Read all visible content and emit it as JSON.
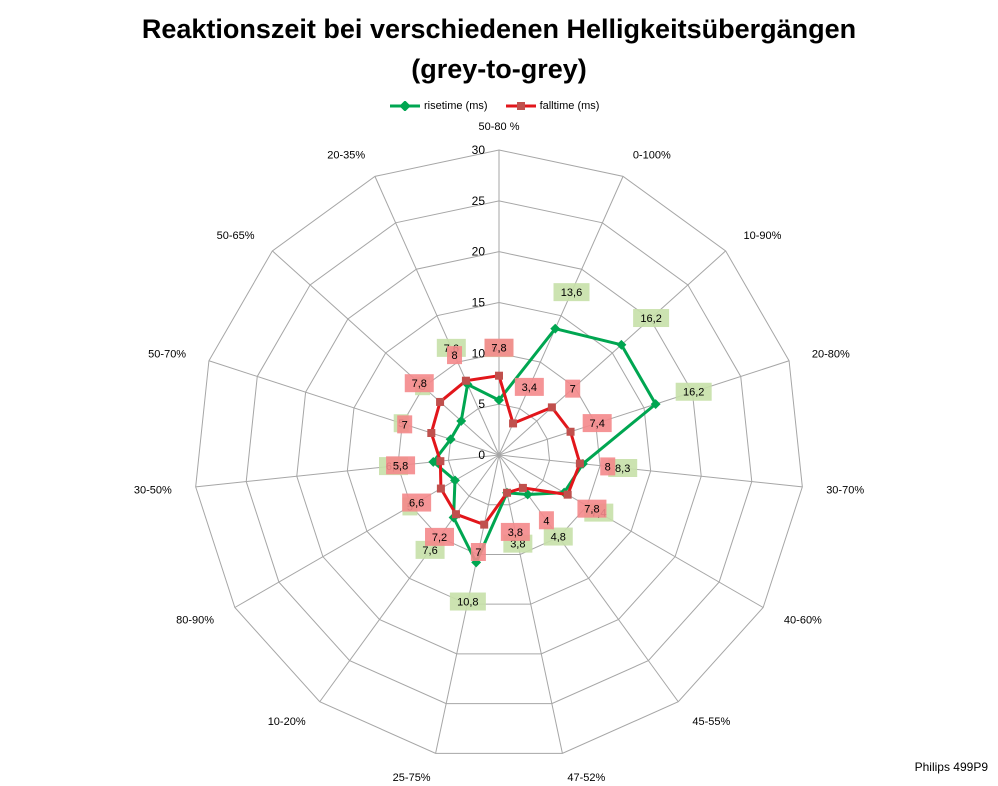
{
  "chart_data": {
    "type": "radar",
    "title_line1": "Reaktionszeit bei verschiedenen Helligkeitsübergängen",
    "title_line2": "(grey-to-grey)",
    "categories": [
      "50-80 %",
      "0-100%",
      "10-90%",
      "20-80%",
      "30-70%",
      "40-60%",
      "45-55%",
      "47-52%",
      "25-75%",
      "10-20%",
      "80-90%",
      "30-50%",
      "50-70%",
      "50-65%",
      "20-35%"
    ],
    "radial_ticks": [
      0,
      5,
      10,
      15,
      20,
      25,
      30
    ],
    "rlim": [
      0,
      30
    ],
    "series": [
      {
        "name": "risetime (ms)",
        "color": "#00a651",
        "label_bg": "#c6e0a8",
        "values": [
          5.4,
          13.6,
          16.2,
          16.2,
          8.3,
          7.4,
          4.8,
          3.8,
          10.8,
          7.6,
          5,
          6.5,
          5,
          5,
          7.6
        ],
        "labels": [
          "5,4",
          "13,6",
          "16,2",
          "16,2",
          "8,3",
          "7,4",
          "4,8",
          "3,8",
          "10,8",
          "7,6",
          "5",
          "6,5",
          "5",
          "5",
          "7,6"
        ]
      },
      {
        "name": "falltime (ms)",
        "color": "#e2161b",
        "label_bg": "#f4888b",
        "values": [
          7.8,
          3.4,
          7,
          7.4,
          8,
          7.8,
          4,
          3.8,
          7,
          7.2,
          6.6,
          5.8,
          7,
          7.8,
          8
        ],
        "labels": [
          "7,8",
          "3,4",
          "7",
          "7,4",
          "8",
          "7,8",
          "4",
          "3,8",
          "7",
          "7,2",
          "6,6",
          "5,8",
          "7",
          "7,8",
          "8"
        ]
      }
    ],
    "legend_position": "top",
    "grid": true
  },
  "watermark": "Philips 499P9"
}
